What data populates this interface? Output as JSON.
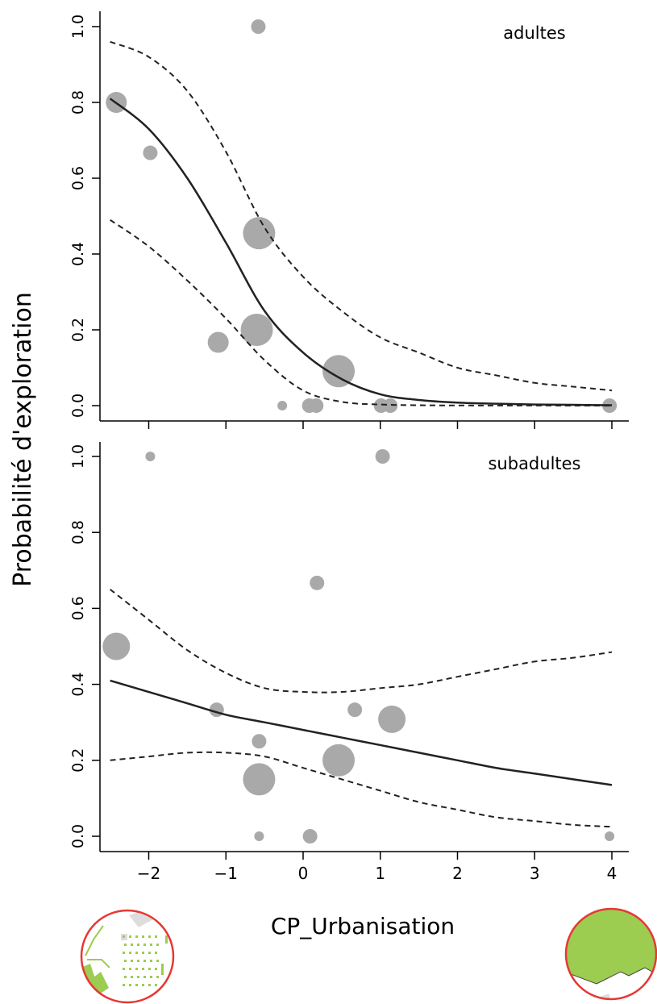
{
  "ylabel": "Probabilité d'exploration",
  "xlabel": "CP_Urbanisation",
  "colors": {
    "point": "#a9a9a9",
    "line": "#222222",
    "map_border": "#e53935",
    "map_green": "#9ccc50",
    "map_grey": "#dddddd"
  },
  "icons": {
    "left_map": "urban-map-thumbnail-icon",
    "right_map": "green-area-map-thumbnail-icon"
  },
  "chart_data": [
    {
      "type": "scatter",
      "panel_label": "adultes",
      "xlim": [
        -2.6,
        4.2
      ],
      "ylim": [
        0,
        1
      ],
      "x_ticks": [
        -2,
        -1,
        0,
        1,
        2,
        3,
        4
      ],
      "y_ticks": [
        "0.0",
        "0.2",
        "0.4",
        "0.6",
        "0.8",
        "1.0"
      ],
      "points": [
        {
          "x": -0.58,
          "y": 1.0,
          "size": 2
        },
        {
          "x": -2.42,
          "y": 0.8,
          "size": 3
        },
        {
          "x": -1.98,
          "y": 0.667,
          "size": 2
        },
        {
          "x": -0.57,
          "y": 0.455,
          "size": 5
        },
        {
          "x": -1.1,
          "y": 0.167,
          "size": 3
        },
        {
          "x": -0.6,
          "y": 0.2,
          "size": 5
        },
        {
          "x": 0.46,
          "y": 0.091,
          "size": 5
        },
        {
          "x": -0.27,
          "y": 0.0,
          "size": 1
        },
        {
          "x": 0.08,
          "y": 0.0,
          "size": 2
        },
        {
          "x": 0.17,
          "y": 0.0,
          "size": 2
        },
        {
          "x": 1.01,
          "y": 0.0,
          "size": 2
        },
        {
          "x": 1.13,
          "y": 0.0,
          "size": 2
        },
        {
          "x": 3.97,
          "y": 0.0,
          "size": 2
        }
      ],
      "fit": {
        "x": [
          -2.5,
          -2.0,
          -1.5,
          -1.0,
          -0.5,
          0.0,
          0.5,
          1.0,
          1.5,
          2.0,
          2.5,
          3.0,
          3.5,
          4.0
        ],
        "y": [
          0.81,
          0.73,
          0.6,
          0.43,
          0.25,
          0.14,
          0.07,
          0.03,
          0.015,
          0.008,
          0.005,
          0.003,
          0.002,
          0.001
        ]
      },
      "ci_upper": {
        "x": [
          -2.5,
          -2.0,
          -1.5,
          -1.0,
          -0.5,
          0.0,
          0.5,
          1.0,
          1.5,
          2.0,
          2.5,
          3.0,
          3.5,
          4.0
        ],
        "y": [
          0.96,
          0.92,
          0.83,
          0.67,
          0.47,
          0.34,
          0.25,
          0.18,
          0.14,
          0.1,
          0.08,
          0.06,
          0.05,
          0.04
        ]
      },
      "ci_lower": {
        "x": [
          -2.5,
          -2.0,
          -1.5,
          -1.0,
          -0.5,
          0.0,
          0.5,
          1.0,
          1.5,
          2.0,
          2.5,
          3.0,
          3.5,
          4.0
        ],
        "y": [
          0.49,
          0.42,
          0.33,
          0.23,
          0.12,
          0.04,
          0.01,
          0.003,
          0.001,
          0.0005,
          0.0003,
          0.0002,
          0.0001,
          0.0001
        ]
      }
    },
    {
      "type": "scatter",
      "panel_label": "subadultes",
      "xlim": [
        -2.6,
        4.2
      ],
      "ylim": [
        0,
        1
      ],
      "x_ticks": [
        -2,
        -1,
        0,
        1,
        2,
        3,
        4
      ],
      "x_tick_labels": [
        "−2",
        "−1",
        "0",
        "1",
        "2",
        "3",
        "4"
      ],
      "y_ticks": [
        "0.0",
        "0.2",
        "0.4",
        "0.6",
        "0.8",
        "1.0"
      ],
      "points": [
        {
          "x": -1.98,
          "y": 1.0,
          "size": 1
        },
        {
          "x": 1.03,
          "y": 1.0,
          "size": 2
        },
        {
          "x": 0.18,
          "y": 0.667,
          "size": 2
        },
        {
          "x": -2.42,
          "y": 0.5,
          "size": 4
        },
        {
          "x": -1.12,
          "y": 0.333,
          "size": 2
        },
        {
          "x": 0.67,
          "y": 0.333,
          "size": 2
        },
        {
          "x": 1.15,
          "y": 0.308,
          "size": 4
        },
        {
          "x": -0.57,
          "y": 0.25,
          "size": 2
        },
        {
          "x": 0.46,
          "y": 0.2,
          "size": 5
        },
        {
          "x": -0.57,
          "y": 0.15,
          "size": 5
        },
        {
          "x": -0.57,
          "y": 0.0,
          "size": 1
        },
        {
          "x": 0.09,
          "y": 0.0,
          "size": 2
        },
        {
          "x": 3.97,
          "y": 0.0,
          "size": 1
        }
      ],
      "fit": {
        "x": [
          -2.5,
          -2.0,
          -1.5,
          -1.0,
          -0.5,
          0.0,
          0.5,
          1.0,
          1.5,
          2.0,
          2.5,
          3.0,
          3.5,
          4.0
        ],
        "y": [
          0.41,
          0.38,
          0.35,
          0.32,
          0.3,
          0.28,
          0.26,
          0.24,
          0.22,
          0.2,
          0.18,
          0.165,
          0.15,
          0.135
        ]
      },
      "ci_upper": {
        "x": [
          -2.5,
          -2.0,
          -1.5,
          -1.0,
          -0.5,
          0.0,
          0.5,
          1.0,
          1.5,
          2.0,
          2.5,
          3.0,
          3.5,
          4.0
        ],
        "y": [
          0.65,
          0.57,
          0.49,
          0.43,
          0.39,
          0.38,
          0.38,
          0.39,
          0.4,
          0.42,
          0.44,
          0.46,
          0.47,
          0.485
        ]
      },
      "ci_lower": {
        "x": [
          -2.5,
          -2.0,
          -1.5,
          -1.0,
          -0.5,
          0.0,
          0.5,
          1.0,
          1.5,
          2.0,
          2.5,
          3.0,
          3.5,
          4.0
        ],
        "y": [
          0.2,
          0.21,
          0.22,
          0.22,
          0.21,
          0.18,
          0.15,
          0.12,
          0.09,
          0.07,
          0.05,
          0.04,
          0.03,
          0.025
        ]
      }
    }
  ]
}
